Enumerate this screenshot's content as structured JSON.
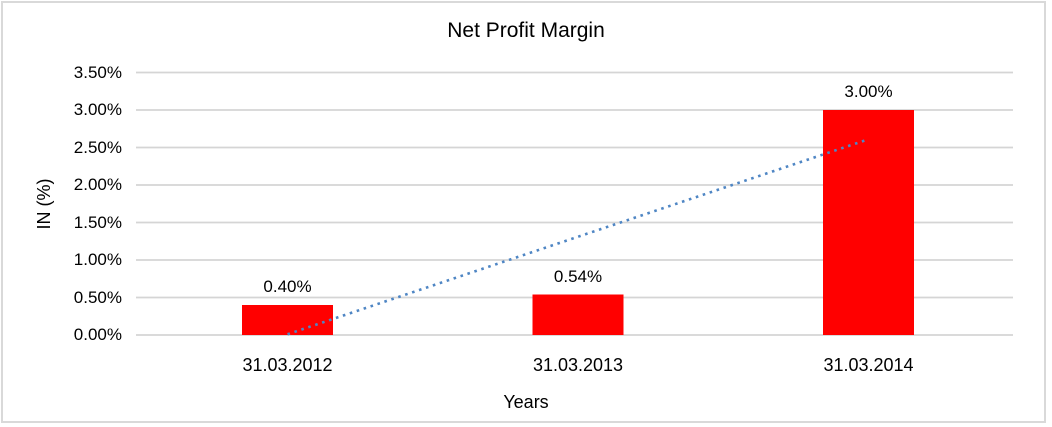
{
  "chart_data": {
    "type": "bar",
    "title": "Net Profit Margin",
    "xlabel": "Years",
    "ylabel": "IN (%)",
    "categories": [
      "31.03.2012",
      "31.03.2013",
      "31.03.2014"
    ],
    "values": [
      0.4,
      0.54,
      3.0
    ],
    "data_labels": [
      "0.40%",
      "0.54%",
      "3.00%"
    ],
    "y_ticks": [
      "3.50%",
      "3.00%",
      "2.50%",
      "2.00%",
      "1.50%",
      "1.00%",
      "0.50%",
      "0.00%"
    ],
    "ylim": [
      0,
      3.5
    ],
    "grid": "horizontal-major",
    "legend": "none",
    "bar_color": "#FF0000",
    "gridline_color": "#D5D5D5",
    "frame_border_color": "#D9D9D9",
    "text_color": "#000000",
    "trendline": {
      "type": "linear",
      "style": "dotted",
      "color": "#4F86C4",
      "start_value": 0.01,
      "end_value": 2.61
    }
  }
}
